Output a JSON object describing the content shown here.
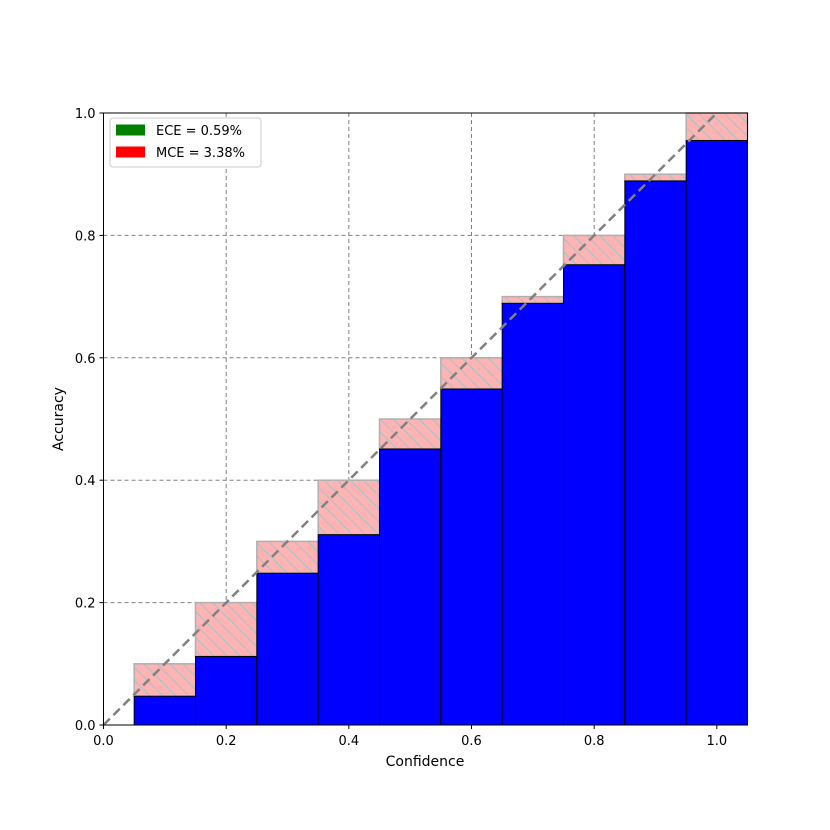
{
  "chart_data": {
    "type": "bar",
    "title": "",
    "xlabel": "Confidence",
    "ylabel": "Accuracy",
    "xlim": [
      0.0,
      1.05
    ],
    "ylim": [
      0.0,
      1.0
    ],
    "xticks": [
      "0.0",
      "0.2",
      "0.4",
      "0.6",
      "0.8",
      "1.0"
    ],
    "yticks": [
      "0.0",
      "0.2",
      "0.4",
      "0.6",
      "0.8",
      "1.0"
    ],
    "grid": true,
    "legend_position": "top-left",
    "bin_width": 0.1,
    "bins": [
      0.1,
      0.2,
      0.3,
      0.4,
      0.5,
      0.6,
      0.7,
      0.8,
      0.9,
      1.0
    ],
    "series": [
      {
        "values": [
          0.047,
          0.112,
          0.248,
          0.311,
          0.451,
          0.549,
          0.689,
          0.752,
          0.889,
          0.955
        ],
        "color": "#0000ff"
      },
      {
        "values": [
          0.1,
          0.2,
          0.3,
          0.4,
          0.5,
          0.6,
          0.7,
          0.8,
          0.9,
          1.0
        ],
        "color": "#ffb3b3"
      }
    ],
    "reference_line": {
      "x": [
        0.0,
        1.05
      ],
      "y": [
        0.0,
        1.05
      ],
      "color": "#808080"
    },
    "legend": [
      {
        "label": "ECE = 0.59%",
        "color": "#008000"
      },
      {
        "label": "MCE = 3.38%",
        "color": "#ff0000"
      }
    ]
  }
}
